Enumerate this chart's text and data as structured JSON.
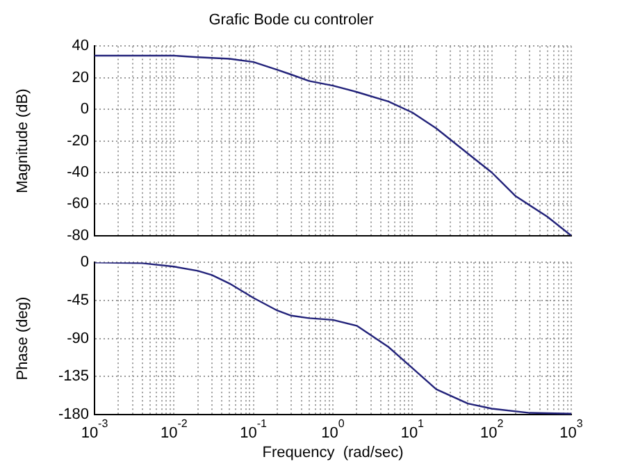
{
  "chart_data": [
    {
      "type": "line",
      "title": "Grafic Bode cu controler",
      "ylabel": "Magnitude (dB)",
      "log": "x",
      "grid": true,
      "legend": false,
      "marker": "none",
      "line_style": "solid",
      "tick_labels": "y",
      "x": [
        0.001,
        0.005,
        0.01,
        0.02,
        0.05,
        0.1,
        0.2,
        0.3,
        0.5,
        1,
        2,
        5,
        10,
        20,
        50,
        100,
        200,
        500,
        1000
      ],
      "series": [
        {
          "color": "#22227a",
          "values": [
            34,
            34,
            34,
            33,
            32,
            30,
            25,
            22,
            18,
            15,
            11,
            5,
            -2,
            -12,
            -28,
            -40,
            -55,
            -68,
            -80
          ]
        }
      ],
      "xlim": [
        0.001,
        1000
      ],
      "ylim": [
        -80,
        40
      ],
      "yticks": [
        -80,
        -60,
        -40,
        -20,
        0,
        20,
        40
      ],
      "xticks": [
        {
          "value": 0.001,
          "label": null
        },
        {
          "value": 0.002,
          "label": null
        },
        {
          "value": 0.003,
          "label": null
        },
        {
          "value": 0.004,
          "label": null
        },
        {
          "value": 0.005,
          "label": null
        },
        {
          "value": 0.006,
          "label": null
        },
        {
          "value": 0.007,
          "label": null
        },
        {
          "value": 0.008,
          "label": null
        },
        {
          "value": 0.009,
          "label": null
        },
        {
          "value": 0.01,
          "label": null
        },
        {
          "value": 0.02,
          "label": null
        },
        {
          "value": 0.03,
          "label": null
        },
        {
          "value": 0.04,
          "label": null
        },
        {
          "value": 0.05,
          "label": null
        },
        {
          "value": 0.06,
          "label": null
        },
        {
          "value": 0.07,
          "label": null
        },
        {
          "value": 0.08,
          "label": null
        },
        {
          "value": 0.09,
          "label": null
        },
        {
          "value": 0.1,
          "label": null
        },
        {
          "value": 0.2,
          "label": null
        },
        {
          "value": 0.3,
          "label": null
        },
        {
          "value": 0.4,
          "label": null
        },
        {
          "value": 0.5,
          "label": null
        },
        {
          "value": 0.6,
          "label": null
        },
        {
          "value": 0.7,
          "label": null
        },
        {
          "value": 0.8,
          "label": null
        },
        {
          "value": 0.9,
          "label": null
        },
        {
          "value": 1,
          "label": null
        },
        {
          "value": 2,
          "label": null
        },
        {
          "value": 3,
          "label": null
        },
        {
          "value": 4,
          "label": null
        },
        {
          "value": 5,
          "label": null
        },
        {
          "value": 6,
          "label": null
        },
        {
          "value": 7,
          "label": null
        },
        {
          "value": 8,
          "label": null
        },
        {
          "value": 9,
          "label": null
        },
        {
          "value": 10,
          "label": null
        },
        {
          "value": 20,
          "label": null
        },
        {
          "value": 30,
          "label": null
        },
        {
          "value": 40,
          "label": null
        },
        {
          "value": 50,
          "label": null
        },
        {
          "value": 60,
          "label": null
        },
        {
          "value": 70,
          "label": null
        },
        {
          "value": 80,
          "label": null
        },
        {
          "value": 90,
          "label": null
        },
        {
          "value": 100,
          "label": null
        },
        {
          "value": 200,
          "label": null
        },
        {
          "value": 300,
          "label": null
        },
        {
          "value": 400,
          "label": null
        },
        {
          "value": 500,
          "label": null
        },
        {
          "value": 600,
          "label": null
        },
        {
          "value": 700,
          "label": null
        },
        {
          "value": 800,
          "label": null
        },
        {
          "value": 900,
          "label": null
        },
        {
          "value": 1000,
          "label": null
        }
      ]
    },
    {
      "type": "line",
      "xlabel": "Frequency  (rad/sec)",
      "ylabel": "Phase (deg)",
      "log": "x",
      "grid": true,
      "legend": false,
      "marker": "none",
      "line_style": "solid",
      "x": [
        0.001,
        0.004,
        0.01,
        0.02,
        0.03,
        0.05,
        0.1,
        0.2,
        0.3,
        0.5,
        1,
        2,
        5,
        10,
        20,
        50,
        100,
        300,
        1000
      ],
      "series": [
        {
          "color": "#22227a",
          "values": [
            0,
            -1,
            -5,
            -10,
            -15,
            -25,
            -42,
            -57,
            -63,
            -66,
            -68,
            -75,
            -100,
            -125,
            -150,
            -167,
            -173,
            -178,
            -179
          ]
        }
      ],
      "xlim": [
        0.001,
        1000
      ],
      "ylim": [
        -180,
        0
      ],
      "yticks": [
        -180,
        -135,
        -90,
        -45,
        0
      ],
      "xticks": [
        {
          "value": 0.001,
          "label": "10$^{-3}$"
        },
        {
          "value": 0.002,
          "label": null
        },
        {
          "value": 0.003,
          "label": null
        },
        {
          "value": 0.004,
          "label": null
        },
        {
          "value": 0.005,
          "label": null
        },
        {
          "value": 0.006,
          "label": null
        },
        {
          "value": 0.007,
          "label": null
        },
        {
          "value": 0.008,
          "label": null
        },
        {
          "value": 0.009,
          "label": null
        },
        {
          "value": 0.01,
          "label": "10$^{-2}$"
        },
        {
          "value": 0.02,
          "label": null
        },
        {
          "value": 0.03,
          "label": null
        },
        {
          "value": 0.04,
          "label": null
        },
        {
          "value": 0.05,
          "label": null
        },
        {
          "value": 0.06,
          "label": null
        },
        {
          "value": 0.07,
          "label": null
        },
        {
          "value": 0.08,
          "label": null
        },
        {
          "value": 0.09,
          "label": null
        },
        {
          "value": 0.1,
          "label": "10$^{-1}$"
        },
        {
          "value": 0.2,
          "label": null
        },
        {
          "value": 0.3,
          "label": null
        },
        {
          "value": 0.4,
          "label": null
        },
        {
          "value": 0.5,
          "label": null
        },
        {
          "value": 0.6,
          "label": null
        },
        {
          "value": 0.7,
          "label": null
        },
        {
          "value": 0.8,
          "label": null
        },
        {
          "value": 0.9,
          "label": null
        },
        {
          "value": 1,
          "label": "10$^{0}$"
        },
        {
          "value": 2,
          "label": null
        },
        {
          "value": 3,
          "label": null
        },
        {
          "value": 4,
          "label": null
        },
        {
          "value": 5,
          "label": null
        },
        {
          "value": 6,
          "label": null
        },
        {
          "value": 7,
          "label": null
        },
        {
          "value": 8,
          "label": null
        },
        {
          "value": 9,
          "label": null
        },
        {
          "value": 10,
          "label": "10$^{1}$"
        },
        {
          "value": 20,
          "label": null
        },
        {
          "value": 30,
          "label": null
        },
        {
          "value": 40,
          "label": null
        },
        {
          "value": 50,
          "label": null
        },
        {
          "value": 60,
          "label": null
        },
        {
          "value": 70,
          "label": null
        },
        {
          "value": 80,
          "label": null
        },
        {
          "value": 90,
          "label": null
        },
        {
          "value": 100,
          "label": "10$^{2}$"
        },
        {
          "value": 200,
          "label": null
        },
        {
          "value": 300,
          "label": null
        },
        {
          "value": 400,
          "label": null
        },
        {
          "value": 500,
          "label": null
        },
        {
          "value": 600,
          "label": null
        },
        {
          "value": 700,
          "label": null
        },
        {
          "value": 800,
          "label": null
        },
        {
          "value": 900,
          "label": null
        },
        {
          "value": 1000,
          "label": "10$^{3}$"
        }
      ]
    }
  ]
}
